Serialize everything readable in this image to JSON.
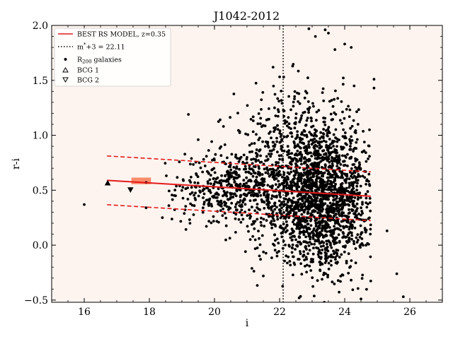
{
  "chart_data": {
    "type": "scatter",
    "title": "J1042-2012",
    "xlabel": "i",
    "ylabel": "r-i",
    "xlim": [
      15.0,
      27.0
    ],
    "ylim": [
      -0.52,
      2.0
    ],
    "xticks": [
      16,
      18,
      20,
      22,
      24,
      26
    ],
    "yticks": [
      -0.5,
      0.0,
      0.5,
      1.0,
      1.5,
      2.0
    ],
    "xtick_labels": [
      "16",
      "18",
      "20",
      "22",
      "24",
      "26"
    ],
    "ytick_labels": [
      "−0.5",
      "0.0",
      "0.5",
      "1.0",
      "1.5",
      "2.0"
    ],
    "grid": false,
    "background": "#fdf4ef",
    "legend_position": "top-left",
    "legend": {
      "rs_model": "BEST RS MODEL, z=0.35",
      "mstar": "m*+3 = 22.11",
      "galaxies": "R200 galaxies",
      "bcg1": "BCG 1",
      "bcg2": "BCG 2"
    },
    "rs_model": {
      "x": [
        16.7,
        24.8
      ],
      "y": [
        0.59,
        0.445
      ],
      "upper": [
        0.812,
        0.667
      ],
      "lower": [
        0.368,
        0.223
      ],
      "color": "#e31a1c"
    },
    "mstar_line": {
      "x": 22.11
    },
    "bcgs": [
      {
        "name": "BCG 1",
        "marker": "triangle-up",
        "x": 16.72,
        "y": 0.565
      },
      {
        "name": "BCG 2",
        "marker": "triangle-down",
        "x": 17.42,
        "y": 0.505
      }
    ],
    "highlight_boxes": [
      {
        "x0": 17.45,
        "x1": 18.05,
        "y0": 0.555,
        "y1": 0.615,
        "color": "#fb8c6a"
      },
      {
        "x0": 20.6,
        "x1": 20.8,
        "y0": 0.52,
        "y1": 0.56,
        "color": "#fcb99b"
      }
    ],
    "galaxies": {
      "color": "#000000",
      "fixed_points": [
        {
          "x": 16.0,
          "y": 0.37
        },
        {
          "x": 17.9,
          "y": 0.34
        },
        {
          "x": 19.2,
          "y": 1.19
        },
        {
          "x": 19.5,
          "y": 0.96
        },
        {
          "x": 21.8,
          "y": 1.62
        },
        {
          "x": 22.4,
          "y": 1.63
        },
        {
          "x": 22.9,
          "y": 1.97
        },
        {
          "x": 23.1,
          "y": 1.9
        },
        {
          "x": 23.4,
          "y": 1.96
        },
        {
          "x": 23.5,
          "y": 1.93
        },
        {
          "x": 23.7,
          "y": 1.78
        },
        {
          "x": 24.0,
          "y": 1.83
        },
        {
          "x": 24.2,
          "y": 1.8
        },
        {
          "x": 24.9,
          "y": 1.51
        },
        {
          "x": 24.9,
          "y": 1.43
        },
        {
          "x": 25.3,
          "y": 0.13
        },
        {
          "x": 25.6,
          "y": -0.26
        },
        {
          "x": 25.8,
          "y": -0.47
        },
        {
          "x": 24.5,
          "y": -0.49
        },
        {
          "x": 22.6,
          "y": -0.48
        },
        {
          "x": 21.5,
          "y": -0.28
        },
        {
          "x": 18.4,
          "y": 0.25
        },
        {
          "x": 18.6,
          "y": 0.36
        },
        {
          "x": 17.9,
          "y": 0.57
        }
      ],
      "clusters": [
        {
          "n": 1900,
          "xmin": 21.0,
          "xmax": 24.8,
          "xmean": 23.2,
          "xsd": 0.85,
          "ymean": 0.42,
          "ysd": 0.32
        },
        {
          "n": 360,
          "xmin": 19.0,
          "xmax": 22.2,
          "xmean": 20.9,
          "xsd": 0.7,
          "ymean": 0.55,
          "ysd": 0.18
        },
        {
          "n": 260,
          "xmin": 20.0,
          "xmax": 24.8,
          "xmean": 22.5,
          "xsd": 1.1,
          "ymean": 0.95,
          "ysd": 0.28
        },
        {
          "n": 110,
          "xmin": 18.2,
          "xmax": 21.0,
          "xmean": 19.6,
          "xsd": 0.6,
          "ymean": 0.48,
          "ysd": 0.14
        }
      ]
    }
  }
}
